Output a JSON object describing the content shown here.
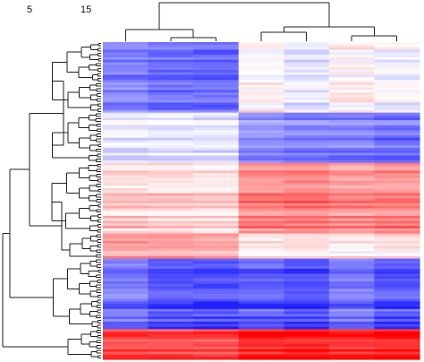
{
  "chart_data": {
    "type": "heatmap",
    "title": "",
    "xlabel": "",
    "ylabel": "",
    "tick_labels": [
      "5",
      "15"
    ],
    "color_scale": {
      "low": "#0000ff",
      "mid": "#ffffff",
      "high": "#ff0000",
      "range": [
        -1,
        1
      ]
    },
    "column_order_groups": [
      [
        0,
        1,
        2
      ],
      [
        3,
        4,
        5,
        6
      ]
    ],
    "blocks": [
      {
        "rows": 28,
        "values": [
          -0.45,
          -0.52,
          -0.55,
          0.06,
          -0.06,
          0.08,
          0.0
        ]
      },
      {
        "rows": 20,
        "values": [
          -0.05,
          -0.05,
          -0.05,
          -0.4,
          -0.46,
          -0.45,
          -0.52
        ]
      },
      {
        "rows": 28,
        "values": [
          0.2,
          0.18,
          0.16,
          0.48,
          0.52,
          0.45,
          0.48
        ]
      },
      {
        "rows": 10,
        "values": [
          0.4,
          0.38,
          0.36,
          0.1,
          0.13,
          0.1,
          0.15
        ]
      },
      {
        "rows": 28,
        "values": [
          -0.55,
          -0.68,
          -0.72,
          -0.65,
          -0.72,
          -0.55,
          -0.68
        ]
      },
      {
        "rows": 12,
        "values": [
          0.72,
          0.7,
          0.7,
          0.85,
          0.88,
          0.8,
          0.86
        ]
      }
    ]
  }
}
